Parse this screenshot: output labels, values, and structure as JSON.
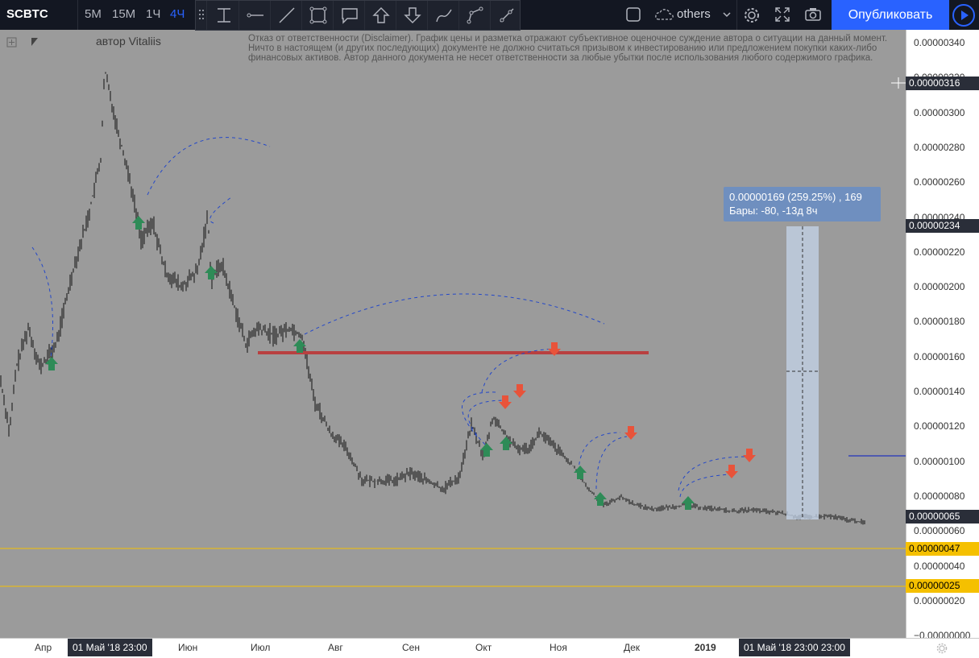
{
  "symbol": "SCBTC",
  "timeframes": [
    {
      "label": "5M",
      "active": false
    },
    {
      "label": "15M",
      "active": false
    },
    {
      "label": "1Ч",
      "active": false
    },
    {
      "label": "4Ч",
      "active": true
    }
  ],
  "toolbar": {
    "layout_label": "others",
    "publish_label": "Опубликовать"
  },
  "drawing_tools": [
    "text-cursor-icon",
    "horizontal-ray-icon",
    "trend-line-icon",
    "rectangle-icon",
    "callout-icon",
    "arrow-up-icon",
    "arrow-down-icon",
    "brush-icon",
    "path-icon",
    "ray-icon"
  ],
  "chart": {
    "author": "автор Vitaliis",
    "disclaimer": "Отказ от ответственности (Disclaimer). График цены и разметка отражают субъективное оценочное суждение автора о ситуации на данный момент. Ничто в настоящем (и других последующих) документе не должно считаться призывом к инвестированию или предложением покупки каких-либо финансовых активов. Автор данного документа не несет ответственности за любые убытки после использования любого содержимого графика.",
    "measure_line1": "0.00000169 (259.25%) , 169",
    "measure_line2": "Бары: -80, -13д 8ч"
  },
  "price_scale": {
    "labels": [
      "0.00000340",
      "0.00000320",
      "0.00000300",
      "0.00000280",
      "0.00000260",
      "0.00000240",
      "0.00000220",
      "0.00000200",
      "0.00000180",
      "0.00000160",
      "0.00000140",
      "0.00000120",
      "0.00000100",
      "0.00000080",
      "0.00000060",
      "0.00000040",
      "0.00000020",
      "−0.00000000"
    ],
    "tags": {
      "crosshair": "0.00000316",
      "measure_top": "0.00000234",
      "last_price": "0.00000065",
      "level1": "0.00000047",
      "level2": "0.00000025"
    }
  },
  "time_scale": {
    "labels": [
      "Апр",
      "Июн",
      "Июл",
      "Авг",
      "Сен",
      "Окт",
      "Ноя",
      "Дек",
      "2019"
    ],
    "tag_left": "01 Май '18   23:00",
    "tag_right": "01 Май '18   23:00  23:00"
  },
  "colors": {
    "background": "#9b9b9b",
    "accent": "#2962ff",
    "resistance": "#b84040",
    "support": "#f5c000",
    "buy_arrow": "#2e8b57",
    "sell_arrow": "#e8533a"
  }
}
